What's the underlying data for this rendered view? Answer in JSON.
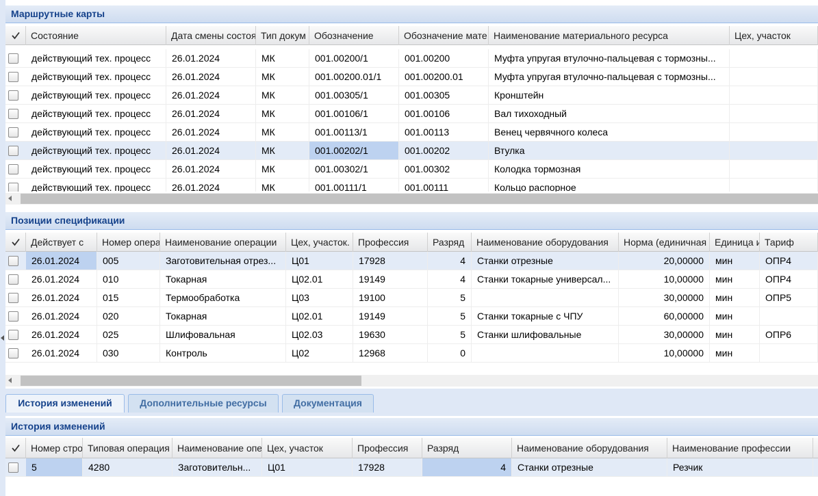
{
  "panels": [
    {
      "title": "Маршрутные карты",
      "columns": [
        "Состояние",
        "Дата смены состоя",
        "Тип докум",
        "Обозначение",
        "Обозначение мате",
        "Наименование материального ресурса",
        "Цех, участок"
      ],
      "rows": [
        [
          "действующий тех. процесс",
          "26.01.2024",
          "МК",
          "001.00200/1",
          "001.00200",
          "Муфта упругая втулочно-пальцевая с тормозны...",
          ""
        ],
        [
          "действующий тех. процесс",
          "26.01.2024",
          "МК",
          "001.00200.01/1",
          "001.00200.01",
          "Муфта упругая втулочно-пальцевая с тормозны...",
          ""
        ],
        [
          "действующий тех. процесс",
          "26.01.2024",
          "МК",
          "001.00305/1",
          "001.00305",
          "Кронштейн",
          ""
        ],
        [
          "действующий тех. процесс",
          "26.01.2024",
          "МК",
          "001.00106/1",
          "001.00106",
          "Вал тихоходный",
          ""
        ],
        [
          "действующий тех. процесс",
          "26.01.2024",
          "МК",
          "001.00113/1",
          "001.00113",
          "Венец червячного колеса",
          ""
        ],
        [
          "действующий тех. процесс",
          "26.01.2024",
          "МК",
          "001.00202/1",
          "001.00202",
          "Втулка",
          ""
        ],
        [
          "действующий тех. процесс",
          "26.01.2024",
          "МК",
          "001.00302/1",
          "001.00302",
          "Колодка тормозная",
          ""
        ],
        [
          "действующий тех. процесс",
          "26.01.2024",
          "МК",
          "001.00111/1",
          "001.00111",
          "Кольцо распорное",
          ""
        ]
      ]
    },
    {
      "title": "Позиции спецификации",
      "columns": [
        "Действует с",
        "Номер опера",
        "Наименование операции",
        "Цех, участок.",
        "Профессия",
        "Разряд",
        "Наименование оборудования",
        "Норма (единичная",
        "Единица и",
        "Тариф"
      ],
      "rows": [
        [
          "26.01.2024",
          "005",
          "Заготовительная отрез...",
          "Ц01",
          "17928",
          "4",
          "Станки отрезные",
          "20,00000",
          "мин",
          "ОПР4"
        ],
        [
          "26.01.2024",
          "010",
          "Токарная",
          "Ц02.01",
          "19149",
          "4",
          "Станки токарные универсал...",
          "10,00000",
          "мин",
          "ОПР4"
        ],
        [
          "26.01.2024",
          "015",
          "Термообработка",
          "Ц03",
          "19100",
          "5",
          "",
          "30,00000",
          "мин",
          "ОПР5"
        ],
        [
          "26.01.2024",
          "020",
          "Токарная",
          "Ц02.01",
          "19149",
          "5",
          "Станки токарные с ЧПУ",
          "60,00000",
          "мин",
          ""
        ],
        [
          "26.01.2024",
          "025",
          "Шлифовальная",
          "Ц02.03",
          "19630",
          "5",
          "Станки шлифовальные",
          "30,00000",
          "мин",
          "ОПР6"
        ],
        [
          "26.01.2024",
          "030",
          "Контроль",
          "Ц02",
          "12968",
          "0",
          "",
          "10,00000",
          "мин",
          ""
        ]
      ]
    },
    {
      "title": "История изменений",
      "columns": [
        "Номер стро",
        "Типовая операция",
        "Наименование опе",
        "Цех, участок",
        "Профессия",
        "Разряд",
        "Наименование оборудования",
        "Наименование профессии"
      ],
      "rows": [
        [
          "5",
          "4280",
          "Заготовительн...",
          "Ц01",
          "17928",
          "4",
          "Станки отрезные",
          "Резчик"
        ]
      ]
    }
  ],
  "tabs": [
    "История изменений",
    "Дополнительные ресурсы",
    "Документация"
  ]
}
